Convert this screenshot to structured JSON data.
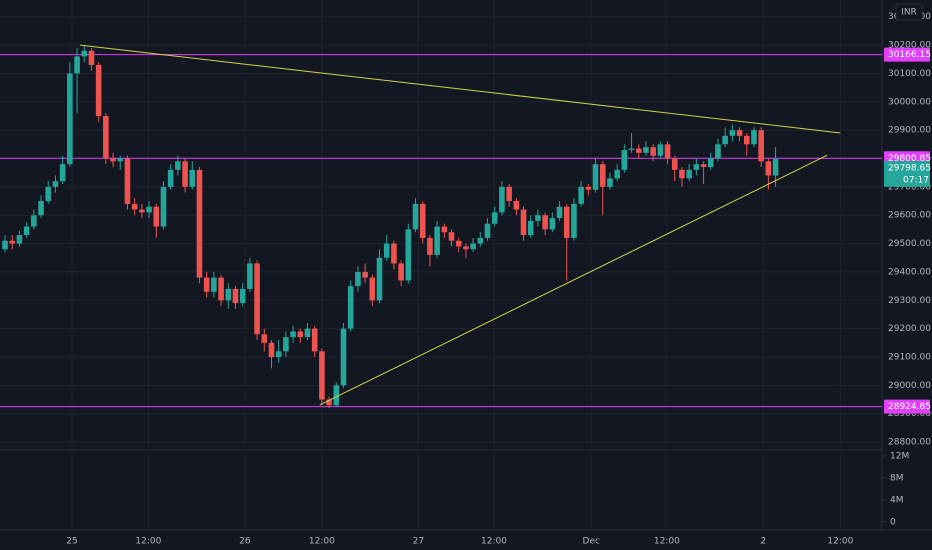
{
  "chart_data": {
    "type": "candlestick",
    "currency": "INR",
    "x": [
      0,
      1,
      2,
      3,
      4,
      5,
      6,
      7,
      8,
      9,
      10,
      11,
      12,
      13,
      14,
      15,
      16,
      17,
      18,
      19,
      20,
      21,
      22,
      23,
      24,
      25,
      26,
      27,
      28,
      29,
      30,
      31,
      32,
      33,
      34,
      35,
      36,
      37,
      38,
      39,
      40,
      41,
      42,
      43,
      44,
      45,
      46,
      47,
      48,
      49,
      50,
      51,
      52,
      53,
      54,
      55,
      56,
      57,
      58,
      59,
      60,
      61,
      62,
      63,
      64,
      65,
      66,
      67,
      68,
      69,
      70,
      71,
      72,
      73,
      74,
      75,
      76,
      77,
      78,
      79,
      80,
      81,
      82,
      83,
      84,
      85,
      86,
      87,
      88,
      89,
      90,
      91,
      92,
      93,
      94,
      95,
      96,
      97,
      98,
      99,
      100,
      101,
      102,
      103,
      104,
      105,
      106,
      107
    ],
    "open": [
      29480,
      29510,
      29500,
      29530,
      29560,
      29600,
      29650,
      29700,
      29720,
      29780,
      30100,
      30160,
      30180,
      30130,
      29950,
      29800,
      29790,
      29800,
      29640,
      29620,
      29610,
      29630,
      29560,
      29700,
      29760,
      29790,
      29700,
      29760,
      29380,
      29330,
      29380,
      29300,
      29340,
      29290,
      29340,
      29430,
      29180,
      29150,
      29100,
      29120,
      29170,
      29190,
      29170,
      29200,
      29120,
      28950,
      28930,
      29000,
      29200,
      29350,
      29400,
      29380,
      29300,
      29450,
      29500,
      29430,
      29370,
      29550,
      29640,
      29520,
      29460,
      29560,
      29540,
      29510,
      29490,
      29480,
      29500,
      29520,
      29570,
      29610,
      29700,
      29650,
      29620,
      29530,
      29580,
      29600,
      29550,
      29590,
      29630,
      29520,
      29640,
      29700,
      29690,
      29780,
      29700,
      29730,
      29760,
      29830,
      29835,
      29820,
      29840,
      29810,
      29850,
      29800,
      29760,
      29730,
      29760,
      29780,
      29770,
      29800,
      29850,
      29880,
      29900,
      29880,
      29850,
      29900,
      29790,
      29740
    ],
    "high": [
      29530,
      29530,
      29545,
      29575,
      29620,
      29670,
      29720,
      29740,
      29810,
      30140,
      30190,
      30200,
      30190,
      30140,
      29960,
      29820,
      29810,
      29810,
      29660,
      29640,
      29650,
      29640,
      29720,
      29780,
      29810,
      29800,
      29790,
      29770,
      29400,
      29400,
      29390,
      29360,
      29350,
      29360,
      29450,
      29440,
      29200,
      29160,
      29160,
      29190,
      29210,
      29200,
      29220,
      29210,
      29130,
      28960,
      29010,
      29220,
      29370,
      29420,
      29430,
      29390,
      29480,
      29530,
      29510,
      29440,
      29570,
      29660,
      29650,
      29530,
      29580,
      29570,
      29550,
      29520,
      29500,
      29520,
      29540,
      29590,
      29630,
      29720,
      29710,
      29660,
      29630,
      29600,
      29620,
      29610,
      29610,
      29650,
      29640,
      29660,
      29720,
      29710,
      29800,
      29790,
      29750,
      29780,
      29850,
      29890,
      29850,
      29860,
      29850,
      29860,
      29860,
      29810,
      29770,
      29780,
      29800,
      29790,
      29820,
      29870,
      29910,
      29920,
      29910,
      29890,
      29910,
      29910,
      29800,
      29840
    ],
    "low": [
      29470,
      29480,
      29490,
      29520,
      29550,
      29590,
      29640,
      29680,
      29710,
      29770,
      29960,
      30140,
      30110,
      29930,
      29780,
      29770,
      29760,
      29620,
      29600,
      29590,
      29590,
      29520,
      29550,
      29690,
      29740,
      29680,
      29690,
      29360,
      29310,
      29310,
      29280,
      29270,
      29270,
      29280,
      29330,
      29160,
      29120,
      29060,
      29080,
      29100,
      29150,
      29150,
      29160,
      29100,
      28930,
      28920,
      28925,
      28990,
      29190,
      29330,
      29360,
      29280,
      29290,
      29440,
      29410,
      29350,
      29360,
      29540,
      29500,
      29420,
      29450,
      29520,
      29490,
      29470,
      29450,
      29470,
      29490,
      29510,
      29560,
      29600,
      29630,
      29600,
      29510,
      29520,
      29560,
      29530,
      29540,
      29580,
      29370,
      29510,
      29630,
      29670,
      29680,
      29600,
      29690,
      29720,
      29750,
      29820,
      29800,
      29810,
      29790,
      29800,
      29780,
      29720,
      29700,
      29720,
      29740,
      29710,
      29760,
      29790,
      29840,
      29860,
      29860,
      29810,
      29840,
      29770,
      29690,
      29700
    ],
    "close": [
      29510,
      29500,
      29530,
      29560,
      29600,
      29650,
      29700,
      29720,
      29780,
      30100,
      30160,
      30180,
      30130,
      29950,
      29800,
      29790,
      29800,
      29640,
      29620,
      29610,
      29630,
      29560,
      29700,
      29760,
      29790,
      29700,
      29760,
      29380,
      29330,
      29380,
      29300,
      29340,
      29290,
      29340,
      29430,
      29180,
      29150,
      29100,
      29120,
      29170,
      29190,
      29170,
      29200,
      29120,
      28950,
      28930,
      29000,
      29200,
      29350,
      29400,
      29380,
      29300,
      29450,
      29500,
      29430,
      29370,
      29550,
      29640,
      29520,
      29460,
      29560,
      29540,
      29510,
      29490,
      29480,
      29500,
      29520,
      29570,
      29610,
      29700,
      29650,
      29620,
      29530,
      29580,
      29600,
      29550,
      29590,
      29630,
      29520,
      29640,
      29700,
      29690,
      29780,
      29700,
      29730,
      29760,
      29830,
      29835,
      29820,
      29840,
      29810,
      29850,
      29800,
      29760,
      29730,
      29760,
      29780,
      29770,
      29800,
      29850,
      29880,
      29900,
      29880,
      29850,
      29900,
      29790,
      29740,
      29798.65
    ],
    "up_color": "#26a69a",
    "down_color": "#ef5350",
    "countdown": "07:17",
    "xlim": [
      -0.7,
      121.5
    ],
    "xticks": [
      {
        "value": 9.3,
        "label": "25"
      },
      {
        "value": 19.9,
        "label": "12:00"
      },
      {
        "value": 33.3,
        "label": "26"
      },
      {
        "value": 44,
        "label": "12:00"
      },
      {
        "value": 57.4,
        "label": "27"
      },
      {
        "value": 67.9,
        "label": "12:00"
      },
      {
        "value": 81.4,
        "label": "Dec"
      },
      {
        "value": 91.9,
        "label": "12:00"
      },
      {
        "value": 105.3,
        "label": "2"
      },
      {
        "value": 116,
        "label": "12:00"
      }
    ],
    "ylim": [
      28772,
      30359
    ],
    "yticks": [
      {
        "value": 30300,
        "label": "30300.00"
      },
      {
        "value": 30200,
        "label": "30200.00"
      },
      {
        "value": 30100,
        "label": "30100.00"
      },
      {
        "value": 30000,
        "label": "30000.00"
      },
      {
        "value": 29900,
        "label": "29900.00"
      },
      {
        "value": 29800,
        "label": "29800.00"
      },
      {
        "value": 29700,
        "label": "29700.00"
      },
      {
        "value": 29600,
        "label": "29600.00"
      },
      {
        "value": 29500,
        "label": "29500.00"
      },
      {
        "value": 29400,
        "label": "29400.00"
      },
      {
        "value": 29300,
        "label": "29300.00"
      },
      {
        "value": 29200,
        "label": "29200.00"
      },
      {
        "value": 29100,
        "label": "29100.00"
      },
      {
        "value": 29000,
        "label": "29000.00"
      },
      {
        "value": 28900,
        "label": "28900.00"
      },
      {
        "value": 28800,
        "label": "28800.00"
      }
    ],
    "grid": true,
    "volume_ylim": [
      -1500000,
      13100000
    ],
    "volume_yticks": [
      {
        "value": 12000000,
        "label": "12M"
      },
      {
        "value": 8000000,
        "label": "8M"
      },
      {
        "value": 4000000,
        "label": "4M"
      },
      0
    ],
    "levels": [
      30166.15,
      29800.85,
      28924.85
    ],
    "level_color": "#e040fb",
    "trend_color": "#d4d44a",
    "trendlines": [
      {
        "x": [
          10.4,
          116
        ],
        "y": [
          30200,
          29890
        ]
      },
      {
        "x": [
          43.7,
          114.2
        ],
        "y": [
          28931,
          29812
        ]
      }
    ]
  }
}
